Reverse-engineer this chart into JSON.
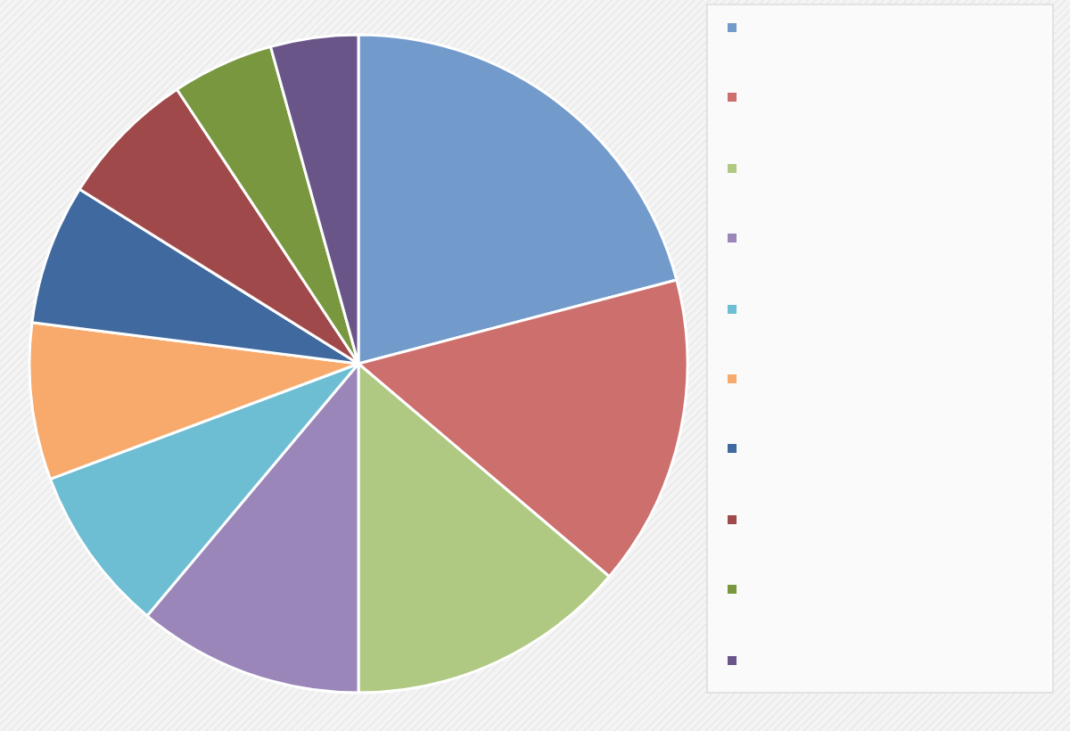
{
  "chart_data": {
    "type": "pie",
    "categories": [
      null,
      null,
      null,
      null,
      null,
      null,
      null,
      null,
      null,
      null
    ],
    "values": [
      20.9,
      15.3,
      13.8,
      11.1,
      8.2,
      7.7,
      6.9,
      6.8,
      5.0,
      4.3
    ],
    "colors": [
      "#729acb",
      "#cc6f6d",
      "#afc982",
      "#9a86b8",
      "#6dbdd3",
      "#f8aa6c",
      "#40699f",
      "#a0494a",
      "#78973f",
      "#6a5589"
    ]
  }
}
